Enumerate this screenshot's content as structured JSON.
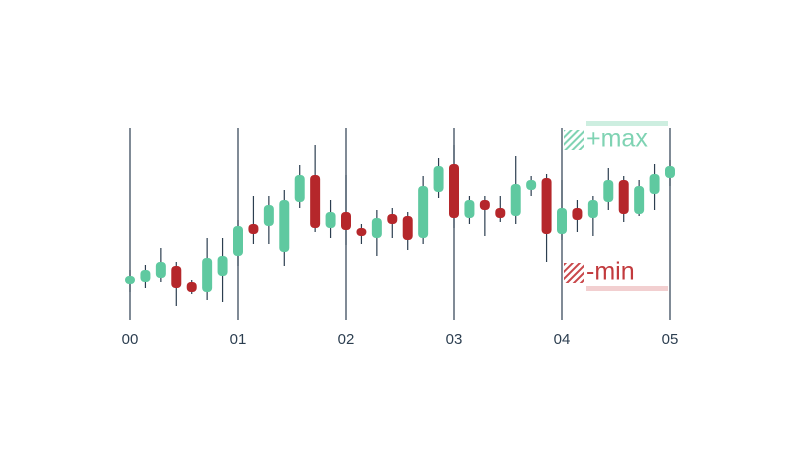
{
  "chart_data": {
    "type": "candlestick",
    "x": [
      0,
      1,
      2,
      3,
      4,
      5,
      6,
      7,
      8,
      9,
      10,
      11,
      12,
      13,
      14,
      15,
      16,
      17,
      18,
      19,
      20,
      21,
      22,
      23,
      24,
      25,
      26,
      27,
      28,
      29,
      30,
      31,
      32,
      33,
      34,
      35
    ],
    "open": [
      18,
      19,
      21,
      27,
      19,
      14,
      22,
      32,
      48,
      47,
      34,
      59,
      72.5,
      46,
      54,
      46,
      41,
      53,
      52,
      41,
      64,
      78,
      51,
      60,
      56,
      52,
      65,
      71,
      43,
      56,
      51,
      59,
      70,
      53,
      63,
      71
    ],
    "high": [
      25,
      27.5,
      36,
      29,
      20,
      41,
      41,
      50,
      62,
      62,
      65,
      77.5,
      87.5,
      60,
      72.5,
      48,
      55,
      56,
      54,
      72,
      81,
      87.5,
      62,
      62,
      62,
      82,
      72,
      73,
      70,
      60,
      62,
      76,
      72,
      70,
      78,
      80
    ],
    "low": [
      14,
      16,
      19,
      7,
      13,
      10,
      9,
      27,
      38,
      38,
      27,
      56,
      44,
      41,
      37.5,
      38,
      32,
      41,
      35,
      38,
      61,
      46,
      48,
      42,
      49,
      48,
      62,
      29,
      40,
      44,
      42,
      55,
      49,
      52,
      55,
      67
    ],
    "close": [
      22,
      25,
      29,
      16,
      14,
      31,
      32,
      47,
      43,
      57.5,
      60,
      72.5,
      46,
      54,
      45,
      42,
      51,
      48,
      40,
      67,
      77,
      51,
      60,
      55,
      51,
      68,
      70,
      43,
      56,
      50,
      60,
      70,
      53,
      67,
      73,
      77
    ],
    "up_color": "#5fc9a0",
    "down_color": "#b5272b",
    "xlim": [
      0,
      35
    ],
    "ylim": [
      0,
      100
    ],
    "xticks": [
      {
        "value": 0,
        "label": "00"
      },
      {
        "value": 7,
        "label": "01"
      },
      {
        "value": 14,
        "label": "02"
      },
      {
        "value": 21,
        "label": "03"
      },
      {
        "value": 28,
        "label": "04"
      },
      {
        "value": 35,
        "label": "05"
      }
    ],
    "grid": true,
    "annotations": [
      "+max",
      "-min"
    ]
  }
}
